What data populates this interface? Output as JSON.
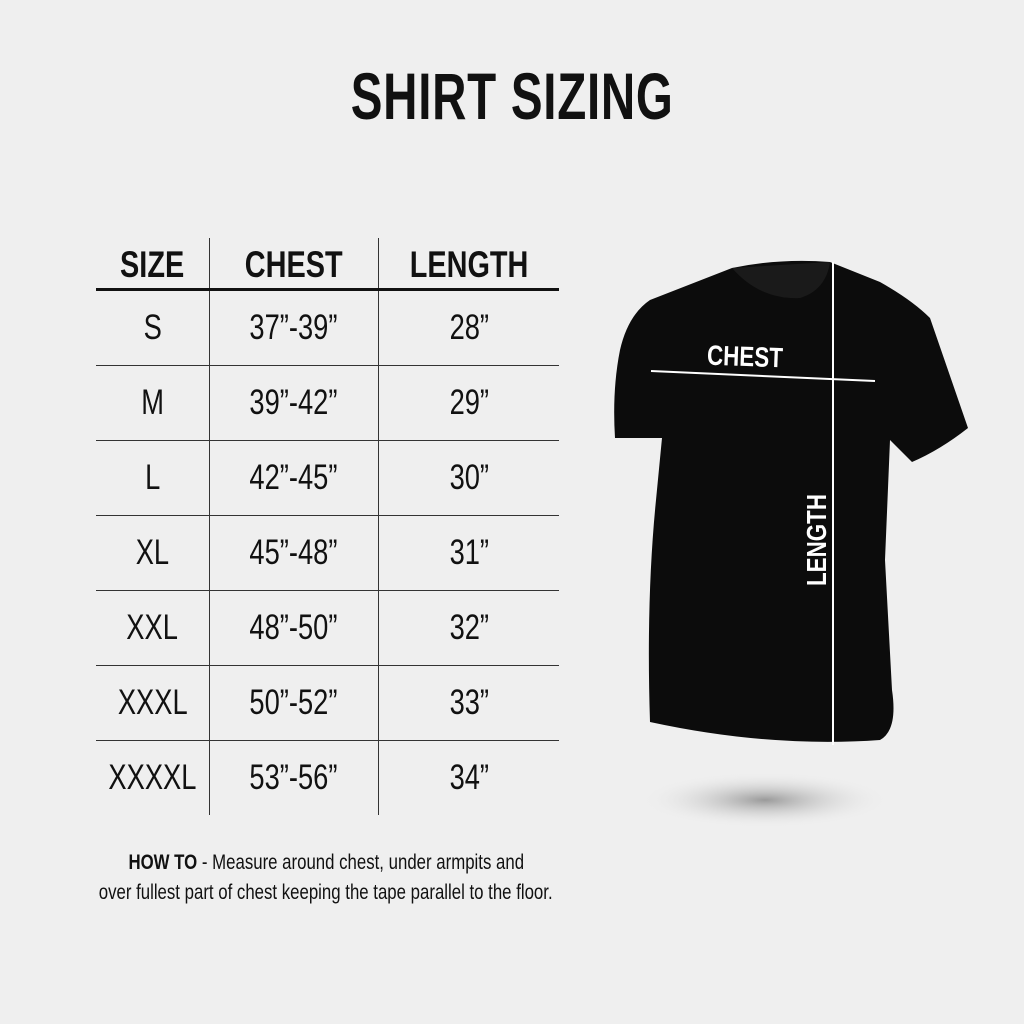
{
  "title": "SHIRT SIZING",
  "table": {
    "headers": [
      "SIZE",
      "CHEST",
      "LENGTH"
    ],
    "rows": [
      [
        "S",
        "37”-39”",
        "28”"
      ],
      [
        "M",
        "39”-42”",
        "29”"
      ],
      [
        "L",
        "42”-45”",
        "30”"
      ],
      [
        "XL",
        "45”-48”",
        "31”"
      ],
      [
        "XXL",
        "48”-50”",
        "32”"
      ],
      [
        "XXXL",
        "50”-52”",
        "33”"
      ],
      [
        "XXXXL",
        "53”-56”",
        "34”"
      ]
    ]
  },
  "howto": {
    "label": "HOW TO",
    "line1": " - Measure around chest, under armpits and",
    "line2": "over fullest part of chest keeping the tape parallel to the floor."
  },
  "shirt": {
    "chest_label": "CHEST",
    "length_label": "LENGTH",
    "color": "#0c0c0c"
  }
}
